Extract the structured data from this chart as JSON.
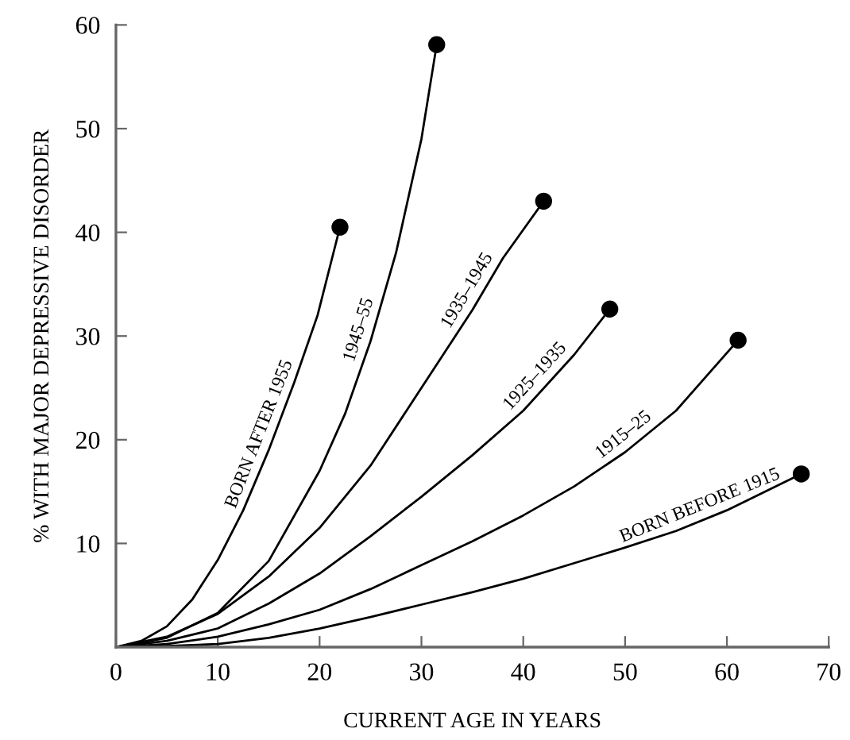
{
  "chart_data": {
    "type": "line",
    "xlabel": "CURRENT AGE IN YEARS",
    "ylabel": "% WITH MAJOR DEPRESSIVE DISORDER",
    "xlim": [
      0,
      70
    ],
    "ylim": [
      0,
      60
    ],
    "xticks": [
      0,
      10,
      20,
      30,
      40,
      50,
      60,
      70
    ],
    "yticks": [
      10,
      20,
      30,
      40,
      50,
      60
    ],
    "grid": false,
    "line_style": "solid",
    "series": [
      {
        "name": "BORN AFTER 1955",
        "color": "#000000",
        "marker": "none",
        "x": [
          0,
          2.5,
          5,
          7.5,
          10,
          12.5,
          15,
          17.5,
          19.8,
          22
        ],
        "values": [
          0,
          0.6,
          2,
          4.6,
          8.4,
          13.2,
          19,
          25.5,
          32,
          40.5
        ]
      },
      {
        "name": "1945–55",
        "color": "#000000",
        "marker": "none",
        "x": [
          0,
          5,
          10,
          15,
          20,
          22.5,
          25,
          27.5,
          30,
          31.5
        ],
        "values": [
          0,
          0.9,
          3.3,
          8.3,
          17,
          22.5,
          29.5,
          38,
          49,
          58.1
        ]
      },
      {
        "name": "1935–1945",
        "color": "#000000",
        "marker": "none",
        "x": [
          0,
          5,
          10,
          15,
          20,
          25,
          30,
          35,
          38,
          42
        ],
        "values": [
          0,
          1,
          3.2,
          6.8,
          11.5,
          17.5,
          25,
          32.5,
          37.5,
          43
        ]
      },
      {
        "name": "1925–1935",
        "color": "#000000",
        "marker": "none",
        "x": [
          0,
          5,
          10,
          15,
          20,
          25,
          30,
          35,
          40,
          45,
          48.5
        ],
        "values": [
          0,
          0.6,
          1.8,
          4.2,
          7.1,
          10.7,
          14.5,
          18.5,
          22.8,
          28.2,
          32.6
        ]
      },
      {
        "name": "1915–25",
        "color": "#000000",
        "marker": "none",
        "x": [
          0,
          5,
          10,
          15,
          20,
          25,
          30,
          35,
          40,
          45,
          50,
          55,
          61.1
        ],
        "values": [
          0,
          0.3,
          1,
          2.2,
          3.6,
          5.6,
          7.9,
          10.2,
          12.7,
          15.5,
          18.8,
          22.8,
          29.6
        ]
      },
      {
        "name": "BORN BEFORE 1915",
        "color": "#000000",
        "marker": "none",
        "x": [
          0,
          5,
          10,
          15,
          20,
          25,
          30,
          35,
          40,
          45,
          50,
          55,
          60,
          67.3
        ],
        "values": [
          0,
          0.1,
          0.3,
          0.9,
          1.8,
          2.9,
          4.1,
          5.3,
          6.6,
          8.1,
          9.6,
          11.2,
          13.2,
          16.7
        ]
      },
      {
        "type": "scatter",
        "color": "#000000",
        "marker": "circle",
        "x": [
          22,
          31.5,
          42,
          48.5,
          61.1,
          67.3
        ],
        "values": [
          40.5,
          58.1,
          43,
          32.6,
          29.6,
          16.7
        ]
      }
    ]
  }
}
